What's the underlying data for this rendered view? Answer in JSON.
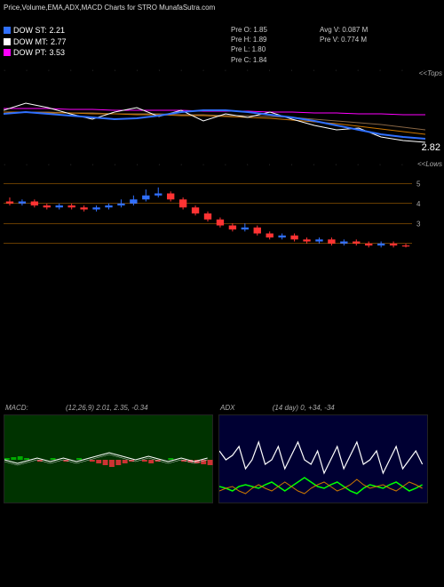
{
  "title": "Price,Volume,EMA,ADX,MACD Charts for STRO MunafaSutra.com",
  "indicators": {
    "st": {
      "label": "DOW ST:",
      "value": "2.21",
      "color": "#3070ff"
    },
    "mt": {
      "label": "DOW MT:",
      "value": "2.77",
      "color": "#ffffff"
    },
    "pt": {
      "label": "DOW PT:",
      "value": "3.53",
      "color": "#ff00ff"
    }
  },
  "stats": {
    "pre_o": "Pre   O: 1.85",
    "pre_h": "Pre   H: 1.89",
    "pre_l": "Pre   L: 1.80",
    "pre_c": "Pre   C: 1.84",
    "avg_v": "Avg V: 0.087 M",
    "pre_v": "Pre  V: 0.774  M"
  },
  "main_chart": {
    "label_top": "<<Tops",
    "label_bot": "<<Lows",
    "price_label": "2.82",
    "lines": {
      "blue": [
        42,
        40,
        42,
        44,
        46,
        48,
        47,
        44,
        40,
        38,
        38,
        40,
        43,
        46,
        50,
        55,
        60,
        65,
        68,
        70
      ],
      "white": [
        38,
        30,
        35,
        42,
        48,
        40,
        35,
        45,
        38,
        50,
        42,
        46,
        40,
        48,
        55,
        60,
        58,
        68,
        72,
        74
      ],
      "magenta": [
        36,
        36,
        36,
        37,
        37,
        38,
        38,
        38,
        38,
        39,
        39,
        39,
        40,
        40,
        41,
        41,
        42,
        42,
        43,
        43
      ],
      "orange": [
        40,
        40,
        41,
        41,
        42,
        42,
        43,
        43,
        44,
        44,
        45,
        46,
        47,
        49,
        51,
        53,
        56,
        59,
        62,
        65
      ],
      "brown": [
        40,
        40,
        40,
        41,
        41,
        42,
        42,
        42,
        43,
        43,
        44,
        44,
        45,
        46,
        48,
        50,
        52,
        54,
        57,
        60
      ]
    },
    "colors": {
      "blue": "#3070ff",
      "white": "#ffffff",
      "magenta": "#ff00ff",
      "orange": "#cc7700",
      "brown": "#886644"
    }
  },
  "candle_chart": {
    "ylabels": [
      "5",
      "4",
      "3"
    ],
    "ylim": [
      1.5,
      5.5
    ],
    "hline_color": "#cc7700",
    "candles": [
      {
        "o": 4.1,
        "c": 4.0,
        "h": 4.3,
        "l": 3.9,
        "col": "#ff3333"
      },
      {
        "o": 4.0,
        "c": 4.1,
        "h": 4.2,
        "l": 3.9,
        "col": "#3070ff"
      },
      {
        "o": 4.1,
        "c": 3.9,
        "h": 4.2,
        "l": 3.8,
        "col": "#ff3333"
      },
      {
        "o": 3.9,
        "c": 3.8,
        "h": 4.0,
        "l": 3.7,
        "col": "#ff3333"
      },
      {
        "o": 3.8,
        "c": 3.9,
        "h": 4.0,
        "l": 3.7,
        "col": "#3070ff"
      },
      {
        "o": 3.9,
        "c": 3.8,
        "h": 4.0,
        "l": 3.7,
        "col": "#ff3333"
      },
      {
        "o": 3.8,
        "c": 3.7,
        "h": 3.9,
        "l": 3.6,
        "col": "#ff3333"
      },
      {
        "o": 3.7,
        "c": 3.8,
        "h": 3.9,
        "l": 3.6,
        "col": "#3070ff"
      },
      {
        "o": 3.8,
        "c": 3.9,
        "h": 4.0,
        "l": 3.7,
        "col": "#3070ff"
      },
      {
        "o": 3.9,
        "c": 4.0,
        "h": 4.2,
        "l": 3.8,
        "col": "#3070ff"
      },
      {
        "o": 4.0,
        "c": 4.2,
        "h": 4.4,
        "l": 3.9,
        "col": "#3070ff"
      },
      {
        "o": 4.2,
        "c": 4.4,
        "h": 4.7,
        "l": 4.1,
        "col": "#3070ff"
      },
      {
        "o": 4.4,
        "c": 4.5,
        "h": 4.8,
        "l": 4.3,
        "col": "#3070ff"
      },
      {
        "o": 4.5,
        "c": 4.2,
        "h": 4.6,
        "l": 4.1,
        "col": "#ff3333"
      },
      {
        "o": 4.2,
        "c": 3.8,
        "h": 4.3,
        "l": 3.7,
        "col": "#ff3333"
      },
      {
        "o": 3.8,
        "c": 3.5,
        "h": 3.9,
        "l": 3.4,
        "col": "#ff3333"
      },
      {
        "o": 3.5,
        "c": 3.2,
        "h": 3.6,
        "l": 3.1,
        "col": "#ff3333"
      },
      {
        "o": 3.2,
        "c": 2.9,
        "h": 3.3,
        "l": 2.8,
        "col": "#ff3333"
      },
      {
        "o": 2.9,
        "c": 2.7,
        "h": 3.0,
        "l": 2.6,
        "col": "#ff3333"
      },
      {
        "o": 2.7,
        "c": 2.8,
        "h": 3.0,
        "l": 2.6,
        "col": "#3070ff"
      },
      {
        "o": 2.8,
        "c": 2.5,
        "h": 2.9,
        "l": 2.4,
        "col": "#ff3333"
      },
      {
        "o": 2.5,
        "c": 2.3,
        "h": 2.6,
        "l": 2.2,
        "col": "#ff3333"
      },
      {
        "o": 2.3,
        "c": 2.4,
        "h": 2.5,
        "l": 2.2,
        "col": "#3070ff"
      },
      {
        "o": 2.4,
        "c": 2.2,
        "h": 2.5,
        "l": 2.1,
        "col": "#ff3333"
      },
      {
        "o": 2.2,
        "c": 2.1,
        "h": 2.3,
        "l": 2.0,
        "col": "#ff3333"
      },
      {
        "o": 2.1,
        "c": 2.2,
        "h": 2.3,
        "l": 2.0,
        "col": "#3070ff"
      },
      {
        "o": 2.2,
        "c": 2.0,
        "h": 2.3,
        "l": 1.9,
        "col": "#ff3333"
      },
      {
        "o": 2.0,
        "c": 2.1,
        "h": 2.2,
        "l": 1.9,
        "col": "#3070ff"
      },
      {
        "o": 2.1,
        "c": 2.0,
        "h": 2.2,
        "l": 1.9,
        "col": "#ff3333"
      },
      {
        "o": 2.0,
        "c": 1.9,
        "h": 2.1,
        "l": 1.8,
        "col": "#ff3333"
      },
      {
        "o": 1.9,
        "c": 2.0,
        "h": 2.1,
        "l": 1.8,
        "col": "#3070ff"
      },
      {
        "o": 2.0,
        "c": 1.9,
        "h": 2.1,
        "l": 1.8,
        "col": "#ff3333"
      },
      {
        "o": 1.9,
        "c": 1.85,
        "h": 2.0,
        "l": 1.8,
        "col": "#ff3333"
      }
    ]
  },
  "macd": {
    "label": "MACD:",
    "params": "(12,26,9) 2.01, 2.35, -0.34",
    "bg": "#003300",
    "line1_color": "#ffffff",
    "line2_color": "#cccccc",
    "hist_pos_color": "#00aa00",
    "hist_neg_color": "#cc3333",
    "line1": [
      50,
      52,
      54,
      52,
      50,
      48,
      50,
      52,
      50,
      48,
      50,
      52,
      50,
      48,
      46,
      44,
      42,
      44,
      46,
      48,
      50,
      48,
      46,
      48,
      50,
      52,
      50,
      48,
      50,
      52,
      50,
      48
    ],
    "hist": [
      2,
      3,
      4,
      2,
      0,
      -2,
      0,
      2,
      0,
      -2,
      0,
      2,
      0,
      -2,
      -4,
      -6,
      -8,
      -6,
      -4,
      -2,
      0,
      -2,
      -4,
      -2,
      0,
      2,
      0,
      -2,
      -3,
      -4,
      -5,
      -6
    ]
  },
  "adx": {
    "label": "ADX",
    "params": "(14   day) 0, +34, -34",
    "bg": "#000033",
    "adx_color": "#ffffff",
    "pdi_color": "#00ff00",
    "ndi_color": "#cc7700",
    "adx_line": [
      60,
      50,
      55,
      65,
      40,
      50,
      70,
      45,
      50,
      65,
      40,
      55,
      70,
      50,
      45,
      60,
      35,
      50,
      65,
      40,
      55,
      70,
      45,
      50,
      60,
      35,
      50,
      65,
      40,
      50,
      60,
      45
    ],
    "pdi_line": [
      80,
      82,
      85,
      80,
      78,
      80,
      82,
      78,
      75,
      80,
      85,
      80,
      75,
      70,
      75,
      80,
      82,
      78,
      75,
      80,
      85,
      88,
      82,
      78,
      80,
      82,
      78,
      75,
      80,
      85,
      82,
      78
    ],
    "ndi_line": [
      85,
      82,
      80,
      85,
      88,
      82,
      78,
      82,
      85,
      80,
      75,
      80,
      85,
      88,
      82,
      78,
      75,
      80,
      85,
      82,
      78,
      72,
      78,
      82,
      80,
      78,
      82,
      85,
      80,
      75,
      78,
      82
    ]
  }
}
